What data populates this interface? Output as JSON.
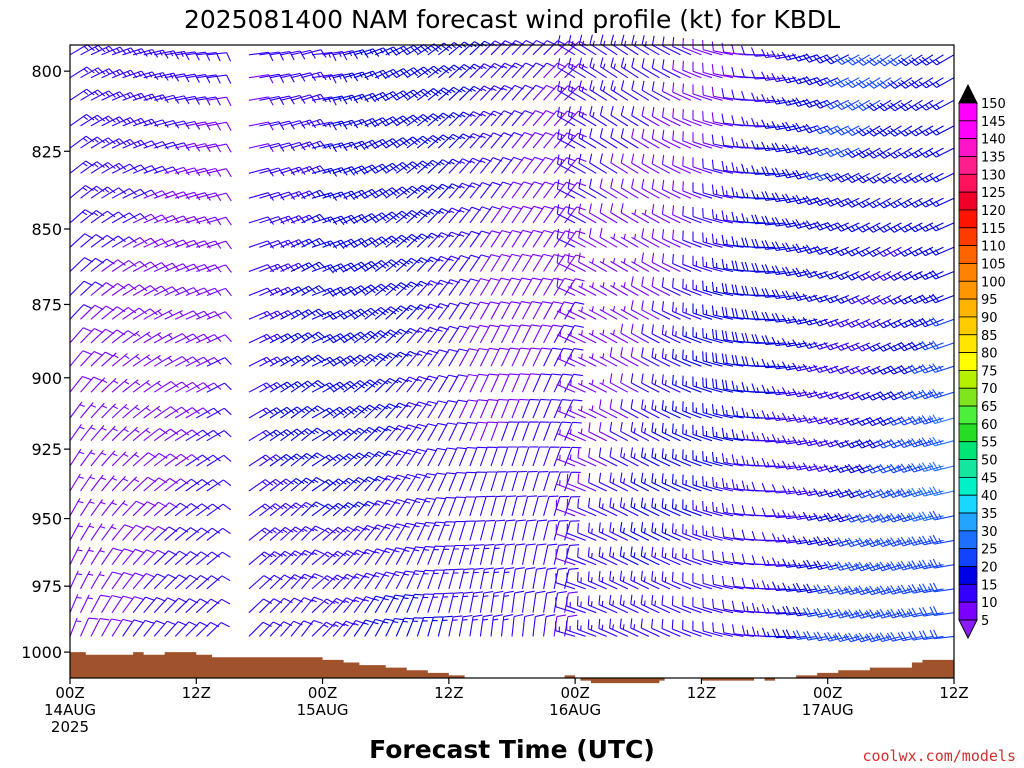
{
  "chart_data": {
    "type": "wind_barb_profile",
    "title": "2025081400 NAM forecast wind profile (kt) for KBDL",
    "xlabel": "Forecast Time (UTC)",
    "ylabel": "",
    "y_scale": "log-pressure",
    "y_inverted": true,
    "ylim_hpa": [
      1010,
      792
    ],
    "y_ticks": [
      800,
      825,
      850,
      875,
      900,
      925,
      950,
      975,
      1000
    ],
    "xlim_hours": [
      0,
      84
    ],
    "x_tick_hours": [
      0,
      12,
      24,
      36,
      48,
      60,
      72,
      84
    ],
    "x_tick_labels": [
      [
        "00Z",
        "14AUG",
        "2025"
      ],
      [
        "12Z"
      ],
      [
        "00Z",
        "15AUG"
      ],
      [
        "12Z"
      ],
      [
        "00Z",
        "16AUG"
      ],
      [
        "12Z"
      ],
      [
        "00Z",
        "17AUG"
      ],
      [
        "12Z"
      ]
    ],
    "speed_scale_kt": [
      5,
      10,
      15,
      20,
      25,
      30,
      35,
      40,
      45,
      50,
      55,
      60,
      65,
      70,
      75,
      80,
      85,
      90,
      95,
      100,
      105,
      110,
      115,
      120,
      125,
      130,
      135,
      140,
      145,
      150
    ],
    "speed_colors": [
      "#8c1aff",
      "#7a00ff",
      "#3300ff",
      "#0000e6",
      "#1144ff",
      "#1f6fff",
      "#22a4ff",
      "#19d7ff",
      "#00f0c8",
      "#14e6a0",
      "#00e676",
      "#24dd24",
      "#4cf03c",
      "#7fe61e",
      "#b4f000",
      "#ffff00",
      "#ffe600",
      "#ffcc00",
      "#ffb400",
      "#ff9600",
      "#ff8200",
      "#ff6400",
      "#ff3c00",
      "#ff1400",
      "#f00028",
      "#ff145a",
      "#ff1e8c",
      "#ff14c8",
      "#ff00ff",
      "#000000"
    ],
    "surface_pressure_hpa": [
      [
        0,
        1000
      ],
      [
        1.5,
        1001
      ],
      [
        5,
        1001
      ],
      [
        6,
        1000
      ],
      [
        7,
        1001
      ],
      [
        9,
        1000
      ],
      [
        12,
        1001
      ],
      [
        13.5,
        1002
      ],
      [
        19,
        1002
      ],
      [
        24,
        1003
      ],
      [
        26,
        1004
      ],
      [
        27.5,
        1005
      ],
      [
        30,
        1006
      ],
      [
        32,
        1007
      ],
      [
        34,
        1008
      ],
      [
        36,
        1009
      ],
      [
        37.5,
        1010
      ],
      [
        47,
        1009
      ],
      [
        48,
        1010
      ],
      [
        48.5,
        1011
      ],
      [
        49.5,
        1012
      ],
      [
        56,
        1011
      ],
      [
        56.5,
        1010
      ],
      [
        60,
        1011
      ],
      [
        65,
        1010
      ],
      [
        66,
        1011
      ],
      [
        67,
        1010
      ],
      [
        69,
        1009
      ],
      [
        71,
        1008
      ],
      [
        73,
        1007
      ],
      [
        76,
        1006
      ],
      [
        80,
        1004
      ],
      [
        81,
        1003
      ],
      [
        84,
        1003
      ]
    ],
    "wind_model": {
      "description": "NAM forecast winds (direction deg from, speed kt) at 25 hPa-ish levels every 1 h",
      "levels_hpa": [
        795,
        802,
        809,
        817,
        824,
        832,
        840,
        848,
        856,
        864,
        872,
        880,
        888,
        896,
        905,
        914,
        922,
        931,
        940,
        949,
        958,
        967,
        976,
        985,
        994
      ],
      "hours_step": 1
    }
  },
  "credit": "coolwx.com/models"
}
